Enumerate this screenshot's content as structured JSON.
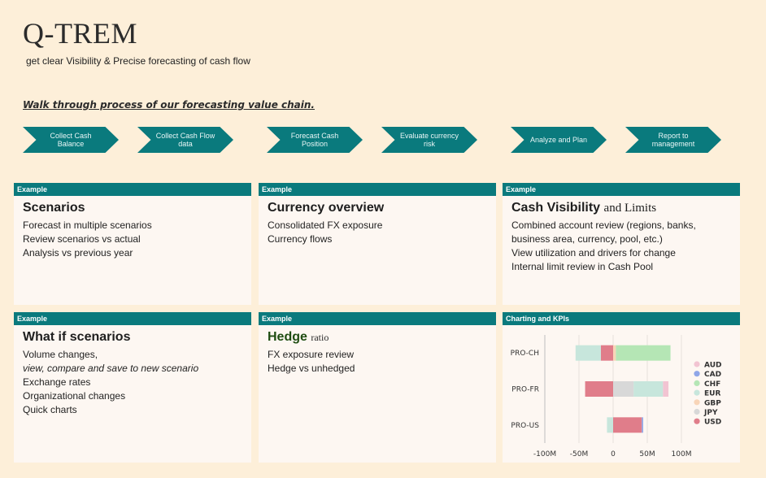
{
  "brand": "Q-TREM",
  "tagline": "get clear Visibility & Precise forecasting of cash flow",
  "walk_through": "Walk through process of our forecasting value chain.",
  "steps": [
    {
      "label": "Collect Cash Balance"
    },
    {
      "label": "Collect Cash Flow data"
    },
    {
      "label": "Forecast Cash Position"
    },
    {
      "label": "Evaluate currency risk"
    },
    {
      "label": "Analyze and Plan"
    },
    {
      "label": "Report to management"
    }
  ],
  "cards": {
    "scenarios": {
      "tag": "Example",
      "title": "Scenarios",
      "items": [
        "Forecast in multiple scenarios",
        "Review scenarios vs actual",
        "Analysis vs previous year"
      ]
    },
    "currency": {
      "tag": "Example",
      "title": "Currency overview",
      "items": [
        "Consolidated FX exposure",
        "Currency flows"
      ]
    },
    "visibility": {
      "tag": "Example",
      "title": "Cash Visibility",
      "title_suffix": "and Limits",
      "items": [
        "Combined account review (regions, banks,",
        "business area, currency, pool, etc.)",
        "View utilization and drivers for change",
        "Internal limit review in Cash Pool"
      ]
    },
    "whatif": {
      "tag": "Example",
      "title": "What if scenarios",
      "items": [
        "Volume changes,",
        "view, compare and save to new scenario",
        "Exchange rates",
        "Organizational changes",
        "Quick charts"
      ]
    },
    "hedge": {
      "tag": "Example",
      "title": "Hedge",
      "title_suffix": "ratio",
      "items": [
        "FX exposure review",
        "Hedge vs unhedged"
      ]
    },
    "charting": {
      "tag": "Charting and KPIs"
    }
  },
  "colors": {
    "accent": "#0a7a7d",
    "background": "#fdefd9",
    "card": "#fdf7f2"
  },
  "chart_data": {
    "type": "bar",
    "orientation": "horizontal",
    "stacked": true,
    "categories": [
      "PRO-CH",
      "PRO-FR",
      "PRO-US"
    ],
    "xlim": [
      -100,
      100
    ],
    "x_ticks": [
      "-100M",
      "-50M",
      "0",
      "50M",
      "100M"
    ],
    "x_tick_values": [
      -100,
      -50,
      0,
      50,
      100
    ],
    "legend_position": "right",
    "series": [
      {
        "name": "AUD",
        "color": "#f2c4d2",
        "negative": [
          0,
          0,
          0
        ],
        "positive": [
          0,
          8,
          0
        ]
      },
      {
        "name": "CAD",
        "color": "#8fa6e8",
        "negative": [
          0,
          0,
          0
        ],
        "positive": [
          0,
          0,
          2
        ]
      },
      {
        "name": "CHF",
        "color": "#b5e6b5",
        "negative": [
          0,
          0,
          0
        ],
        "positive": [
          80,
          0,
          0
        ]
      },
      {
        "name": "EUR",
        "color": "#c7e6dc",
        "negative": [
          -37,
          0,
          -9
        ],
        "positive": [
          0,
          43,
          0
        ]
      },
      {
        "name": "GBP",
        "color": "#f8d5b8",
        "negative": [
          0,
          0,
          0
        ],
        "positive": [
          4,
          0,
          0
        ]
      },
      {
        "name": "JPY",
        "color": "#d8d8d8",
        "negative": [
          0,
          0,
          0
        ],
        "positive": [
          0,
          30,
          0
        ]
      },
      {
        "name": "USD",
        "color": "#e07d8a",
        "negative": [
          -18,
          -41,
          0
        ],
        "positive": [
          0,
          0,
          42
        ]
      }
    ]
  }
}
